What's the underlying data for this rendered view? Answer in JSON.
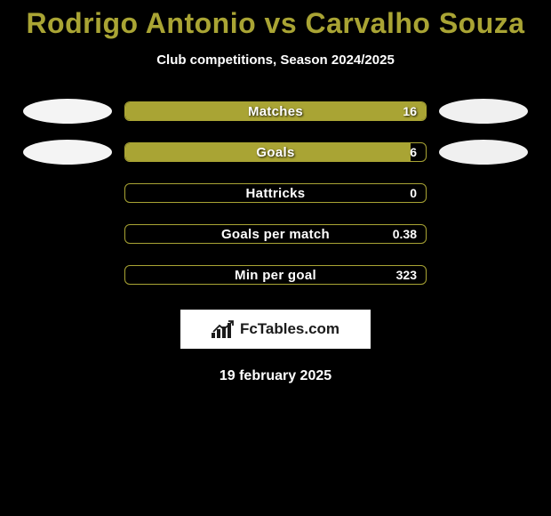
{
  "title": "Rodrigo Antonio vs Carvalho Souza",
  "subtitle": "Club competitions, Season 2024/2025",
  "date": "19 february 2025",
  "logo_text": "FcTables.com",
  "colors": {
    "background": "#000000",
    "accent": "#a9a434",
    "bar_fill": "#a9a434",
    "bar_border": "#a9a434",
    "ellipse_left": "#f4f4f4",
    "ellipse_right": "#f0f0f0",
    "text_white": "#ffffff",
    "logo_bg": "#ffffff",
    "logo_fg": "#1a1a1a"
  },
  "rows": [
    {
      "label": "Matches",
      "value": "16",
      "fill_pct": 100,
      "label_color": "#ffffff",
      "value_color": "#ffffff",
      "left_ellipse": true,
      "right_ellipse": true
    },
    {
      "label": "Goals",
      "value": "6",
      "fill_pct": 95,
      "label_color": "#ffffff",
      "value_color": "#ffffff",
      "left_ellipse": true,
      "right_ellipse": true
    },
    {
      "label": "Hattricks",
      "value": "0",
      "fill_pct": 0,
      "label_color": "#ffffff",
      "value_color": "#ffffff",
      "left_ellipse": false,
      "right_ellipse": false
    },
    {
      "label": "Goals per match",
      "value": "0.38",
      "fill_pct": 0,
      "label_color": "#ffffff",
      "value_color": "#ffffff",
      "left_ellipse": false,
      "right_ellipse": false
    },
    {
      "label": "Min per goal",
      "value": "323",
      "fill_pct": 0,
      "label_color": "#ffffff",
      "value_color": "#ffffff",
      "left_ellipse": false,
      "right_ellipse": false
    }
  ]
}
